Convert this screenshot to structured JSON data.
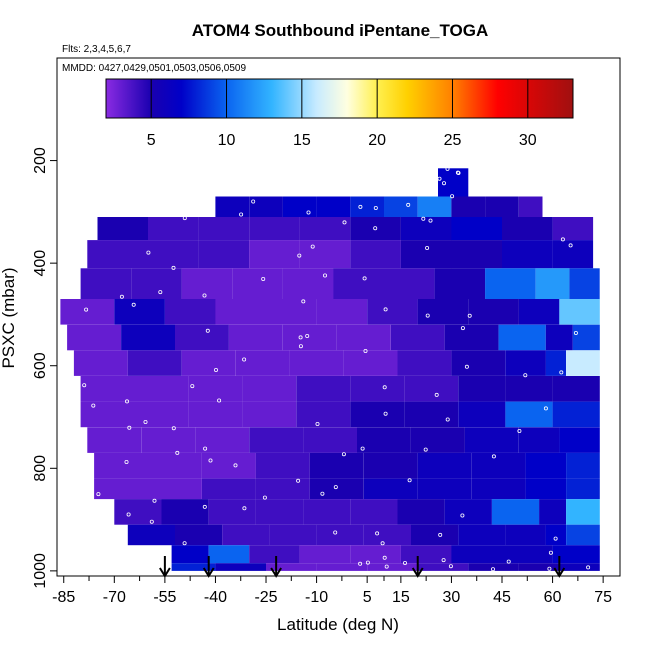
{
  "chart_data": {
    "type": "heatmap",
    "title": "ATOM4 Southbound iPentane_TOGA",
    "flights_note": "Flts: 2,3,4,5,6,7",
    "dates_note": "MMDD: 0427,0429,0501,0503,0506,0509",
    "xlabel": "Latitude (deg N)",
    "ylabel": "PSXC (mbar)",
    "xlim": [
      -87,
      80
    ],
    "ylim": [
      1010,
      0
    ],
    "x_ticks": [
      -85,
      -70,
      -55,
      -40,
      -25,
      -10,
      5,
      15,
      30,
      45,
      60,
      75
    ],
    "x_tick_labels": [
      "-85",
      "-70",
      "-55",
      "-40",
      "-25",
      "-10",
      "5",
      "15",
      "30",
      "45",
      "60",
      "75"
    ],
    "y_ticks": [
      200,
      400,
      600,
      800,
      1000
    ],
    "y_tick_labels": [
      "200",
      "400",
      "600",
      "800",
      "1000"
    ],
    "colorbar": {
      "range": [
        2,
        33
      ],
      "ticks": [
        5,
        10,
        15,
        20,
        25,
        30
      ],
      "tick_labels": [
        "5",
        "10",
        "15",
        "20",
        "25",
        "30"
      ],
      "stops": [
        {
          "value": 2,
          "color": "#8a2be2"
        },
        {
          "value": 5,
          "color": "#1a00b0"
        },
        {
          "value": 7,
          "color": "#0000c8"
        },
        {
          "value": 10,
          "color": "#0a64f0"
        },
        {
          "value": 13,
          "color": "#32b4ff"
        },
        {
          "value": 16,
          "color": "#c8ebff"
        },
        {
          "value": 18,
          "color": "#ffffe0"
        },
        {
          "value": 20,
          "color": "#fff050"
        },
        {
          "value": 22,
          "color": "#ffd000"
        },
        {
          "value": 25,
          "color": "#ff8000"
        },
        {
          "value": 28,
          "color": "#ff0000"
        },
        {
          "value": 33,
          "color": "#a01010"
        }
      ]
    },
    "profile_markers_lat": [
      -55,
      -42,
      -22,
      20,
      62
    ],
    "levels": [
      {
        "p_top": 270,
        "p_bottom": 310,
        "lat_min": -40,
        "lat_max": 57,
        "x": [
          -40,
          -30,
          -20,
          -10,
          0,
          10,
          20,
          30,
          40,
          50
        ],
        "values": [
          6,
          6,
          7,
          7,
          8,
          9,
          11,
          5,
          5,
          4
        ]
      },
      {
        "p_top": 310,
        "p_bottom": 355,
        "lat_min": -75,
        "lat_max": 72,
        "x": [
          -75,
          -60,
          -45,
          -30,
          -15,
          0,
          15,
          30,
          45,
          60
        ],
        "values": [
          5,
          4,
          4,
          4,
          4,
          5,
          6,
          7,
          5,
          4
        ]
      },
      {
        "p_top": 355,
        "p_bottom": 410,
        "lat_min": -78,
        "lat_max": 72,
        "x": [
          -78,
          -60,
          -45,
          -30,
          -15,
          0,
          15,
          30,
          45,
          60
        ],
        "values": [
          4,
          4,
          4,
          3,
          3,
          4,
          5,
          5,
          6,
          6
        ]
      },
      {
        "p_top": 410,
        "p_bottom": 470,
        "lat_min": -80,
        "lat_max": 74,
        "x": [
          -80,
          -65,
          -50,
          -35,
          -20,
          -5,
          10,
          25,
          40,
          55,
          65
        ],
        "values": [
          4,
          4,
          3,
          3,
          3,
          4,
          4,
          5,
          10,
          12,
          9
        ]
      },
      {
        "p_top": 470,
        "p_bottom": 520,
        "lat_min": -86,
        "lat_max": 74,
        "x": [
          -86,
          -70,
          -55,
          -40,
          -25,
          -10,
          5,
          20,
          35,
          50,
          62
        ],
        "values": [
          3,
          6,
          4,
          3,
          3,
          3,
          4,
          5,
          5,
          6,
          14
        ]
      },
      {
        "p_top": 520,
        "p_bottom": 570,
        "lat_min": -84,
        "lat_max": 74,
        "x": [
          -84,
          -68,
          -52,
          -36,
          -20,
          -4,
          12,
          28,
          44,
          58,
          66
        ],
        "values": [
          3,
          6,
          4,
          3,
          3,
          3,
          4,
          5,
          10,
          6,
          9
        ]
      },
      {
        "p_top": 570,
        "p_bottom": 620,
        "lat_min": -82,
        "lat_max": 74,
        "x": [
          -82,
          -66,
          -50,
          -34,
          -18,
          -2,
          14,
          30,
          46,
          58,
          64
        ],
        "values": [
          3,
          4,
          3,
          3,
          3,
          3,
          4,
          5,
          6,
          8,
          16
        ]
      },
      {
        "p_top": 620,
        "p_bottom": 670,
        "lat_min": -80,
        "lat_max": 74,
        "x": [
          -80,
          -64,
          -48,
          -32,
          -16,
          0,
          16,
          32,
          46,
          60
        ],
        "values": [
          3,
          3,
          3,
          3,
          4,
          4,
          4,
          5,
          5,
          5
        ]
      },
      {
        "p_top": 670,
        "p_bottom": 720,
        "lat_min": -80,
        "lat_max": 74,
        "x": [
          -80,
          -64,
          -48,
          -32,
          -16,
          0,
          16,
          32,
          46,
          60
        ],
        "values": [
          3,
          3,
          3,
          3,
          4,
          5,
          5,
          6,
          10,
          8
        ]
      },
      {
        "p_top": 720,
        "p_bottom": 770,
        "lat_min": -78,
        "lat_max": 74,
        "x": [
          -78,
          -62,
          -46,
          -30,
          -14,
          2,
          18,
          34,
          50,
          62
        ],
        "values": [
          3,
          3,
          3,
          4,
          4,
          5,
          5,
          6,
          6,
          7
        ]
      },
      {
        "p_top": 770,
        "p_bottom": 820,
        "lat_min": -76,
        "lat_max": 74,
        "x": [
          -76,
          -60,
          -44,
          -28,
          -12,
          4,
          20,
          36,
          52,
          64
        ],
        "values": [
          3,
          3,
          3,
          4,
          5,
          5,
          6,
          6,
          7,
          8
        ]
      },
      {
        "p_top": 820,
        "p_bottom": 860,
        "lat_min": -76,
        "lat_max": 74,
        "x": [
          -76,
          -60,
          -44,
          -28,
          -12,
          4,
          20,
          36,
          52,
          64
        ],
        "values": [
          3,
          3,
          4,
          4,
          5,
          6,
          6,
          6,
          7,
          8
        ]
      },
      {
        "p_top": 860,
        "p_bottom": 910,
        "lat_min": -70,
        "lat_max": 74,
        "x": [
          -70,
          -56,
          -42,
          -28,
          -14,
          0,
          14,
          28,
          42,
          56,
          64
        ],
        "values": [
          4,
          5,
          4,
          4,
          4,
          4,
          5,
          6,
          10,
          6,
          13
        ]
      },
      {
        "p_top": 910,
        "p_bottom": 950,
        "lat_min": -66,
        "lat_max": 74,
        "x": [
          -66,
          -52,
          -38,
          -24,
          -10,
          4,
          18,
          32,
          46,
          58,
          64
        ],
        "values": [
          6,
          5,
          4,
          4,
          4,
          4,
          5,
          6,
          6,
          7,
          9
        ]
      },
      {
        "p_top": 950,
        "p_bottom": 985,
        "lat_min": -53,
        "lat_max": 74,
        "x": [
          -53,
          -42,
          -30,
          -15,
          0,
          15,
          30,
          45,
          60
        ],
        "values": [
          7,
          10,
          4,
          3,
          3,
          4,
          6,
          6,
          7
        ]
      },
      {
        "p_top": 985,
        "p_bottom": 1000,
        "lat_min": -53,
        "lat_max": 74,
        "x": [
          -53,
          -40,
          -25,
          -10,
          5,
          20,
          35,
          50,
          62
        ],
        "values": [
          8,
          6,
          3,
          3,
          3,
          4,
          5,
          5,
          6
        ]
      },
      {
        "p_top": 215,
        "p_bottom": 270,
        "lat_min": 26,
        "lat_max": 35,
        "x": [
          26
        ],
        "values": [
          7
        ]
      }
    ]
  }
}
